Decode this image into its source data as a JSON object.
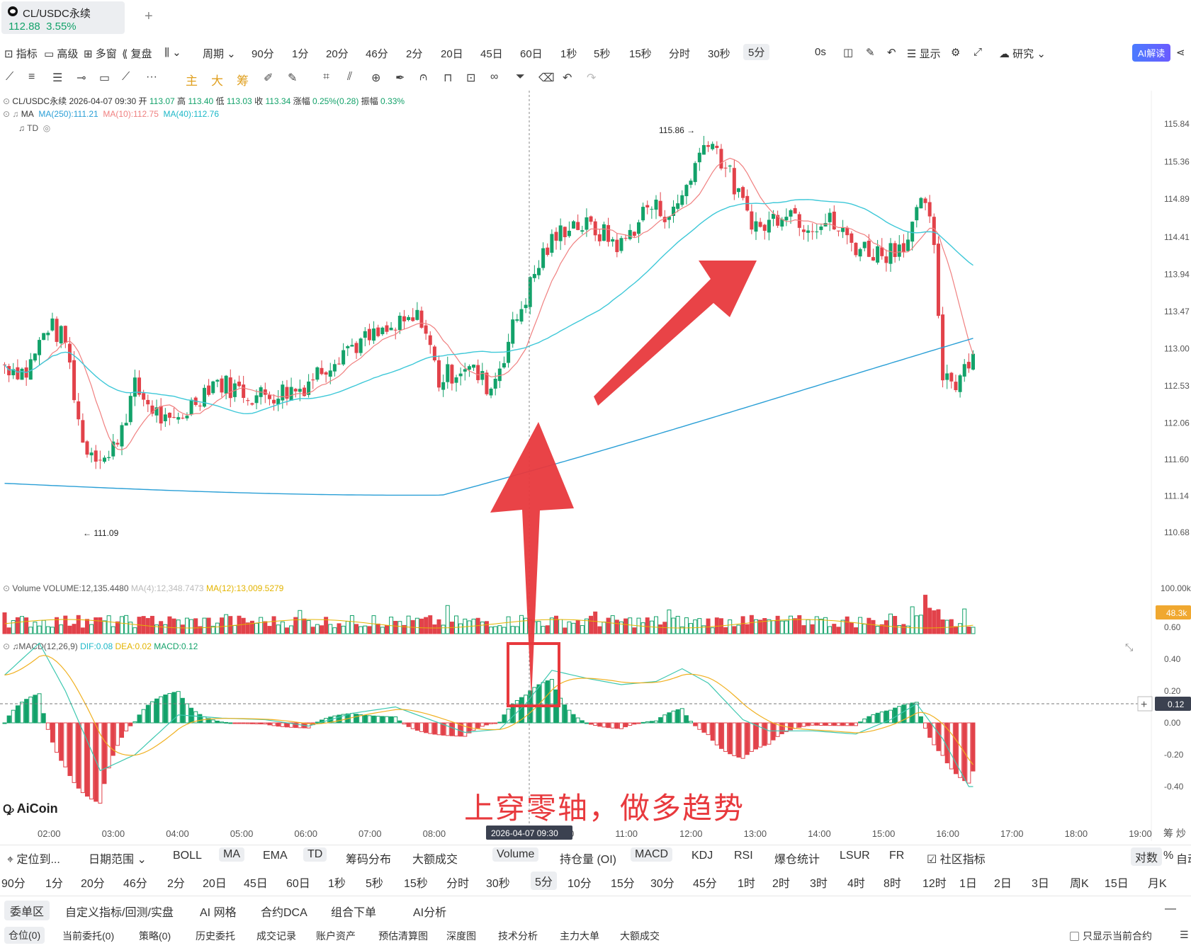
{
  "tab": {
    "title": "CL/USDC永续",
    "price": "112.88",
    "change": "3.55%",
    "add": "+"
  },
  "toolbar1": {
    "items": [
      "指标",
      "高级",
      "多窗",
      "复盘",
      "周期",
      "90分",
      "1分",
      "20分",
      "46分",
      "2分",
      "20日",
      "45日",
      "60日",
      "1秒",
      "5秒",
      "15秒",
      "分时",
      "30秒",
      "5分",
      "0s",
      "显示",
      "研究"
    ],
    "selected": "5分",
    "ai_button": "AI解读"
  },
  "toolbar2": {
    "main": "主",
    "big": "大",
    "chip": "筹"
  },
  "ohlc": {
    "symbol": "CL/USDC永续",
    "datetime": "2026-04-07 09:30",
    "open_label": "开",
    "open": "113.07",
    "high_label": "高",
    "high": "113.40",
    "low_label": "低",
    "low": "113.03",
    "close_label": "收",
    "close": "113.34",
    "chg_label": "涨幅",
    "chg": "0.25%(0.28)",
    "amp_label": "振幅",
    "amp": "0.33%"
  },
  "ma_legend": {
    "name": "MA",
    "ma250": "MA(250):111.21",
    "ma10": "MA(10):112.75",
    "ma40": "MA(40):112.76"
  },
  "td_legend": {
    "name": "TD"
  },
  "volume_legend": {
    "name": "Volume",
    "volume": "VOLUME:12,135.4480",
    "ma4": "MA(4):12,348.7473",
    "ma12": "MA(12):13,009.5279"
  },
  "macd_legend": {
    "name": "MACD(12,26,9)",
    "dif": "DIF:0.08",
    "dea": "DEA:0.02",
    "macd": "MACD:0.12"
  },
  "chart_data": {
    "type": "candlestick",
    "price_axis": [
      "115.84",
      "115.36",
      "114.89",
      "114.41",
      "113.94",
      "113.47",
      "113.00",
      "112.53",
      "112.06",
      "111.60",
      "111.14",
      "110.68"
    ],
    "volume_axis": [
      "100.00k"
    ],
    "volume_marker": "48.3k",
    "macd_axis": [
      "0.60",
      "0.40",
      "0.20",
      "0.00",
      "-0.20",
      "-0.40"
    ],
    "macd_marker": "0.12",
    "time_axis": [
      "02:00",
      "03:00",
      "04:00",
      "05:00",
      "06:00",
      "07:00",
      "08:00",
      "09:00",
      "10:00",
      "11:00",
      "12:00",
      "13:00",
      "14:00",
      "15:00",
      "16:00",
      "17:00",
      "18:00",
      "19:00"
    ],
    "crosshair_label": "2026-04-07 09:30",
    "high_marker": "115.86",
    "low_marker": "111.09"
  },
  "annotation": "上穿零轴，做多趋势",
  "logo": "AiCoin",
  "indicator_bar": {
    "items": [
      "定位到...",
      "日期范围",
      "BOLL",
      "MA",
      "EMA",
      "TD",
      "筹码分布",
      "大额成交",
      "Volume",
      "持仓量 (OI)",
      "MACD",
      "KDJ",
      "RSI",
      "爆仓统计",
      "LSUR",
      "FR",
      "社区指标",
      "对数",
      "%",
      "自动"
    ],
    "selected": [
      "MA",
      "TD",
      "Volume",
      "MACD",
      "对数"
    ]
  },
  "period_bar": {
    "items": [
      "90分",
      "1分",
      "20分",
      "46分",
      "2分",
      "20日",
      "45日",
      "60日",
      "1秒",
      "5秒",
      "15秒",
      "分时",
      "30秒",
      "5分",
      "10分",
      "15分",
      "30分",
      "45分",
      "1时",
      "2时",
      "3时",
      "4时",
      "8时",
      "12时",
      "1日",
      "2日",
      "3日",
      "周K",
      "15日",
      "月K"
    ],
    "selected": "5分"
  },
  "panel_tabs": {
    "items": [
      "委单区",
      "自定义指标/回测/实盘",
      "AI 网格",
      "合约DCA",
      "组合下单",
      "AI分析"
    ],
    "selected": "委单区"
  },
  "panel_sub": {
    "items": [
      "仓位(0)",
      "当前委托(0)",
      "策略(0)",
      "历史委托",
      "成交记录",
      "账户资产",
      "预估清算图",
      "深度图",
      "技术分析",
      "主力大单",
      "大额成交"
    ],
    "selected": "仓位(0)",
    "checkbox_label": "只显示当前合约"
  },
  "colors": {
    "up": "#13a26a",
    "down": "#e2424a",
    "ma10": "#f08080",
    "ma40": "#3ec8d8",
    "ma250": "#2a9fd6",
    "annotation": "#e8393d"
  }
}
